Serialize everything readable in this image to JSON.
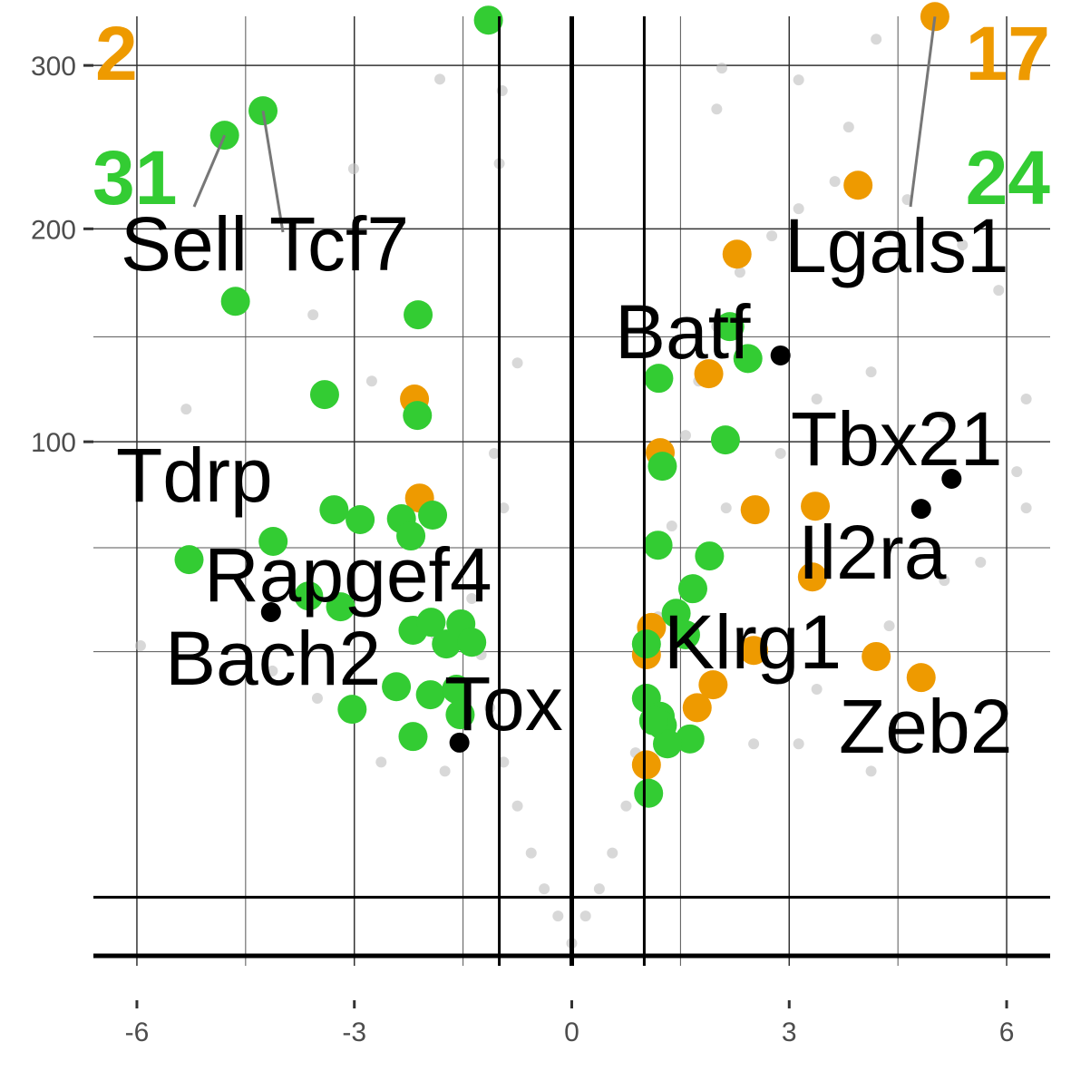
{
  "chart_data": {
    "type": "scatter",
    "scale_y": "sqrt",
    "grid": true,
    "xlim": [
      -6.6,
      6.6
    ],
    "ylim": [
      0,
      334
    ],
    "xticks": [
      -6,
      -3,
      0,
      3,
      6
    ],
    "yticks": [
      100,
      200,
      300
    ],
    "x_minor_gridlines": [
      -4.5,
      -1.5,
      1.5,
      4.5
    ],
    "y_minor_gridlines": [
      145,
      63,
      35
    ],
    "vlines": [
      -1,
      0,
      1
    ],
    "hlines": [
      0,
      1.3
    ],
    "series": [
      {
        "color": "#bebebe",
        "x": [
          0,
          -0.19,
          -0.38,
          -0.56,
          -0.75,
          -0.94,
          -1.13,
          -1.25,
          -1.38,
          -0.94,
          -1.07,
          -0.96,
          -1.0,
          -0.75,
          -1.88,
          -1.75,
          -2.63,
          -3.51,
          -4.13,
          -5.95,
          -5.32,
          -3.01,
          -3.57,
          -1.82,
          -2.76,
          0.19,
          0.38,
          0.56,
          0.75,
          0.88,
          1.0,
          1.19,
          1.38,
          1.57,
          1.75,
          2.0,
          2.32,
          2.76,
          3.13,
          3.63,
          4.63,
          5.39,
          5.89,
          6.27,
          6.14,
          5.64,
          4.38,
          3.38,
          3.13,
          2.51,
          3.38,
          4.13,
          5.14,
          2.88,
          2.13,
          4.2,
          3.13,
          2.07,
          3.82,
          2.0,
          4.13,
          6.27,
          5.14
        ],
        "values": [
          0.06,
          0.6,
          1.7,
          4.0,
          8.5,
          14.2,
          23.3,
          34.3,
          48.3,
          75.9,
          95.5,
          283.2,
          237.5,
          133.0,
          39.0,
          12.9,
          14.2,
          25.1,
          30.7,
          36.4,
          113.1,
          234.4,
          155.5,
          290.8,
          125.0,
          0.6,
          1.7,
          4.0,
          8.5,
          15.6,
          26.9,
          43.5,
          69.9,
          102.5,
          125.0,
          149.8,
          176.8,
          196.1,
          211.2,
          226.9,
          216.4,
          191.2,
          167.6,
          117.3,
          88.7,
          58.6,
          41.2,
          26.9,
          17.0,
          17.0,
          117.3,
          129.0,
          110.0,
          95.5,
          75.9,
          317.9,
          290.3,
          298.2,
          259.9,
          271.3,
          12.9,
          75.9,
          53.3
        ]
      },
      {
        "color": "#ee9a00",
        "x": [
          5.01,
          3.95,
          2.28,
          1.89,
          -2.17,
          1.22,
          -2.1,
          2.53,
          3.36,
          3.32,
          2.51,
          4.2,
          4.82,
          1.95,
          1.73,
          1.03,
          1.1,
          1.03
        ],
        "values": [
          333.8,
          224.7,
          186.3,
          128.2,
          117.3,
          95.8,
          79.3,
          75.3,
          76.5,
          54.3,
          35.3,
          33.9,
          29.3,
          27.8,
          23.3,
          34.3,
          40.8,
          13.8
        ]
      },
      {
        "color": "#33cc33",
        "x": [
          -1.15,
          -4.79,
          -4.26,
          -4.64,
          -2.12,
          -3.41,
          -2.13,
          -3.28,
          -2.92,
          -2.35,
          -1.92,
          -2.22,
          -4.12,
          -5.28,
          -3.19,
          -3.63,
          -2.19,
          -1.94,
          -1.53,
          -1.73,
          -1.38,
          -2.42,
          -1.95,
          -1.59,
          -3.03,
          -2.19,
          -1.54,
          2.18,
          2.43,
          1.2,
          2.12,
          1.25,
          1.19,
          1.9,
          1.67,
          1.44,
          1.57,
          1.03,
          1.03,
          1.22,
          1.25,
          1.63,
          1.32,
          1.06,
          1.13
        ],
        "values": [
          331.3,
          254.8,
          270.2,
          162.1,
          155.5,
          119.2,
          110.5,
          75.3,
          72.0,
          72.3,
          73.5,
          66.7,
          65.0,
          59.4,
          46.1,
          49.0,
          40.1,
          42.1,
          41.7,
          36.8,
          37.2,
          27.4,
          25.8,
          26.9,
          23.0,
          18.2,
          22.0,
          149.8,
          135.0,
          126.2,
          100.7,
          90.7,
          63.8,
          60.5,
          51.0,
          44.4,
          39.0,
          36.8,
          25.1,
          21.7,
          20.1,
          17.8,
          17.0,
          10.0,
          20.9
        ]
      }
    ],
    "genes": [
      {
        "name": "Sell",
        "x": -4.79,
        "y": 254.8
      },
      {
        "name": "Tcf7",
        "x": -4.26,
        "y": 270.2
      },
      {
        "name": "Lgals1",
        "x": 5.01,
        "y": 333.8
      },
      {
        "name": "Batf",
        "x": 2.88,
        "y": 136.4
      },
      {
        "name": "Tbx21",
        "x": 5.24,
        "y": 86.1
      },
      {
        "name": "Tdrp"
      },
      {
        "name": "Il2ra",
        "x": 4.82,
        "y": 75.6
      },
      {
        "name": "Rapgef4"
      },
      {
        "name": "Bach2",
        "x": -4.15,
        "y": 44.7
      },
      {
        "name": "Klrg1"
      },
      {
        "name": "Tox",
        "x": -1.55,
        "y": 17.2
      },
      {
        "name": "Zeb2"
      }
    ],
    "counts": [
      {
        "value": 2,
        "color": "#ee9a00"
      },
      {
        "value": 31,
        "color": "#33cc33"
      },
      {
        "value": 17,
        "color": "#ee9a00"
      },
      {
        "value": 24,
        "color": "#33cc33"
      }
    ]
  }
}
